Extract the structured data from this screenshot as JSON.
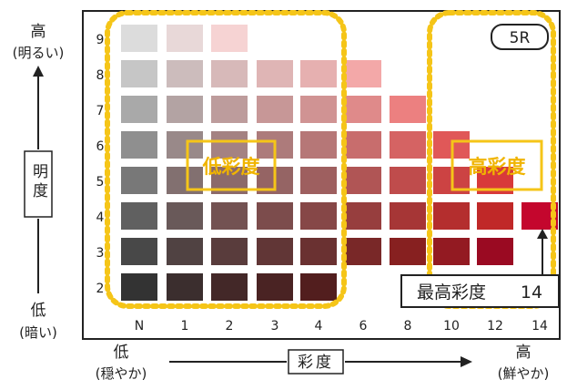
{
  "hue_label": "5R",
  "value_axis": {
    "label": "明度",
    "high": "高",
    "high_note": "(明るい)",
    "low": "低",
    "low_note": "(暗い)",
    "levels": [
      "2",
      "3",
      "4",
      "5",
      "6",
      "7",
      "8",
      "9"
    ]
  },
  "chroma_axis": {
    "label": "彩度",
    "low": "低",
    "low_note": "(穏やか)",
    "high": "高",
    "high_note": "(鮮やか)",
    "levels": [
      "N",
      "1",
      "2",
      "3",
      "4",
      "6",
      "8",
      "10",
      "12",
      "14"
    ]
  },
  "low_chroma_label": "低彩度",
  "high_chroma_label": "高彩度",
  "max_chroma_callout": {
    "label": "最高彩度",
    "value": "14"
  },
  "colors": {
    "frame": "#222222",
    "highlight": "#f5c518",
    "highlight_text": "#f0b400"
  },
  "chips": [
    {
      "value": 9,
      "chroma": "N",
      "color": "#dcdcdc"
    },
    {
      "value": 9,
      "chroma": "1",
      "color": "#e8d8d8"
    },
    {
      "value": 9,
      "chroma": "2",
      "color": "#f6d3d3"
    },
    {
      "value": 8,
      "chroma": "N",
      "color": "#c6c6c6"
    },
    {
      "value": 8,
      "chroma": "1",
      "color": "#ccbcbc"
    },
    {
      "value": 8,
      "chroma": "2",
      "color": "#d7b9b9"
    },
    {
      "value": 8,
      "chroma": "3",
      "color": "#dfb5b5"
    },
    {
      "value": 8,
      "chroma": "4",
      "color": "#e6b0b0"
    },
    {
      "value": 8,
      "chroma": "6",
      "color": "#f3a8a8"
    },
    {
      "value": 7,
      "chroma": "N",
      "color": "#a9a9a9"
    },
    {
      "value": 7,
      "chroma": "1",
      "color": "#b3a3a3"
    },
    {
      "value": 7,
      "chroma": "2",
      "color": "#bd9c9c"
    },
    {
      "value": 7,
      "chroma": "3",
      "color": "#c79797"
    },
    {
      "value": 7,
      "chroma": "4",
      "color": "#d09393"
    },
    {
      "value": 7,
      "chroma": "6",
      "color": "#df8a8a"
    },
    {
      "value": 7,
      "chroma": "8",
      "color": "#ec8080"
    },
    {
      "value": 6,
      "chroma": "N",
      "color": "#8f8f8f"
    },
    {
      "value": 6,
      "chroma": "1",
      "color": "#998989"
    },
    {
      "value": 6,
      "chroma": "2",
      "color": "#a48282"
    },
    {
      "value": 6,
      "chroma": "3",
      "color": "#ad7b7b"
    },
    {
      "value": 6,
      "chroma": "4",
      "color": "#b67777"
    },
    {
      "value": 6,
      "chroma": "6",
      "color": "#c86d6d"
    },
    {
      "value": 6,
      "chroma": "8",
      "color": "#d56363"
    },
    {
      "value": 6,
      "chroma": "10",
      "color": "#e05858"
    },
    {
      "value": 5,
      "chroma": "N",
      "color": "#787878"
    },
    {
      "value": 5,
      "chroma": "1",
      "color": "#827070"
    },
    {
      "value": 5,
      "chroma": "2",
      "color": "#8c6a6a"
    },
    {
      "value": 5,
      "chroma": "3",
      "color": "#956464"
    },
    {
      "value": 5,
      "chroma": "4",
      "color": "#9e5f5f"
    },
    {
      "value": 5,
      "chroma": "6",
      "color": "#b05555"
    },
    {
      "value": 5,
      "chroma": "8",
      "color": "#bf4c4c"
    },
    {
      "value": 5,
      "chroma": "10",
      "color": "#cc4343"
    },
    {
      "value": 5,
      "chroma": "12",
      "color": "#d83a3a"
    },
    {
      "value": 4,
      "chroma": "N",
      "color": "#606060"
    },
    {
      "value": 4,
      "chroma": "1",
      "color": "#695959"
    },
    {
      "value": 4,
      "chroma": "2",
      "color": "#735252"
    },
    {
      "value": 4,
      "chroma": "3",
      "color": "#7c4c4c"
    },
    {
      "value": 4,
      "chroma": "4",
      "color": "#864747"
    },
    {
      "value": 4,
      "chroma": "6",
      "color": "#973e3e"
    },
    {
      "value": 4,
      "chroma": "8",
      "color": "#a63636"
    },
    {
      "value": 4,
      "chroma": "10",
      "color": "#b42e2e"
    },
    {
      "value": 4,
      "chroma": "12",
      "color": "#c02828"
    },
    {
      "value": 4,
      "chroma": "14",
      "color": "#c4062d"
    },
    {
      "value": 3,
      "chroma": "N",
      "color": "#484848"
    },
    {
      "value": 3,
      "chroma": "1",
      "color": "#504242"
    },
    {
      "value": 3,
      "chroma": "2",
      "color": "#593c3c"
    },
    {
      "value": 3,
      "chroma": "3",
      "color": "#613636"
    },
    {
      "value": 3,
      "chroma": "4",
      "color": "#6a3131"
    },
    {
      "value": 3,
      "chroma": "6",
      "color": "#792828"
    },
    {
      "value": 3,
      "chroma": "8",
      "color": "#872020"
    },
    {
      "value": 3,
      "chroma": "10",
      "color": "#931a22"
    },
    {
      "value": 3,
      "chroma": "12",
      "color": "#9a0a22"
    },
    {
      "value": 2,
      "chroma": "N",
      "color": "#333333"
    },
    {
      "value": 2,
      "chroma": "1",
      "color": "#3b2e2e"
    },
    {
      "value": 2,
      "chroma": "2",
      "color": "#432828"
    },
    {
      "value": 2,
      "chroma": "3",
      "color": "#4a2323"
    },
    {
      "value": 2,
      "chroma": "4",
      "color": "#521e1e"
    }
  ]
}
